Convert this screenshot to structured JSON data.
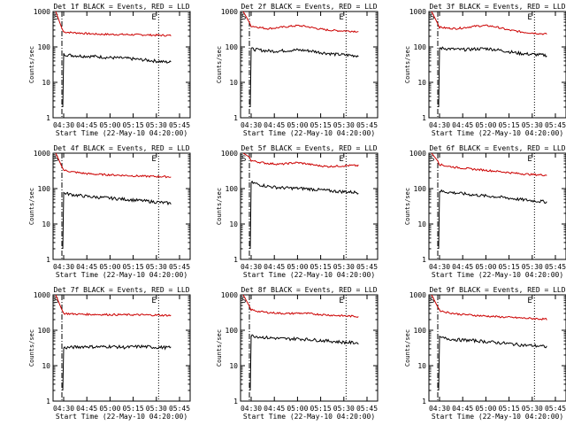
{
  "chart_data": [
    {
      "type": "line",
      "title": "Det 1f BLACK = Events, RED = LLD",
      "xlabel": "Start Time (22-May-10 04:20:00)",
      "ylabel": "Counts/sec",
      "x_tick_labels": [
        "04:30",
        "04:45",
        "05:00",
        "05:15",
        "05:30",
        "05:45"
      ],
      "y_tick_labels": [
        "1",
        "10",
        "100",
        "1000"
      ],
      "y_scale": "log",
      "ylim": [
        1,
        1000
      ],
      "markers": {
        "start_label": "S",
        "end_label": "E"
      },
      "series": [
        {
          "name": "LLD",
          "color": "#cc0000",
          "values": [
            265,
            255,
            248,
            238,
            232,
            228,
            226,
            225,
            224,
            222,
            220,
            218,
            215,
            212,
            210
          ]
        },
        {
          "name": "Events",
          "color": "#000000",
          "values": [
            62,
            58,
            56,
            55,
            54,
            52,
            50,
            49,
            48,
            46,
            44,
            42,
            40,
            38,
            37
          ]
        }
      ]
    },
    {
      "type": "line",
      "title": "Det 2f BLACK = Events, RED = LLD",
      "xlabel": "Start Time (22-May-10 04:20:00)",
      "ylabel": "Counts/sec",
      "x_tick_labels": [
        "04:30",
        "04:45",
        "05:00",
        "05:15",
        "05:30",
        "05:45"
      ],
      "y_tick_labels": [
        "1",
        "10",
        "100",
        "1000"
      ],
      "y_scale": "log",
      "ylim": [
        1,
        1000
      ],
      "markers": {
        "start_label": "S",
        "end_label": "E"
      },
      "series": [
        {
          "name": "LLD",
          "color": "#cc0000",
          "values": [
            390,
            360,
            330,
            340,
            360,
            380,
            400,
            385,
            350,
            320,
            300,
            290,
            285,
            280,
            275
          ]
        },
        {
          "name": "Events",
          "color": "#000000",
          "values": [
            88,
            82,
            78,
            76,
            78,
            80,
            82,
            80,
            76,
            70,
            66,
            62,
            60,
            58,
            56
          ]
        }
      ]
    },
    {
      "type": "line",
      "title": "Det 3f BLACK = Events, RED = LLD",
      "xlabel": "Start Time (22-May-10 04:20:00)",
      "ylabel": "Counts/sec",
      "x_tick_labels": [
        "04:30",
        "04:45",
        "05:00",
        "05:15",
        "05:30",
        "05:45"
      ],
      "y_tick_labels": [
        "1",
        "10",
        "100",
        "1000"
      ],
      "y_scale": "log",
      "ylim": [
        1,
        1000
      ],
      "markers": {
        "start_label": "S",
        "end_label": "E"
      },
      "series": [
        {
          "name": "LLD",
          "color": "#cc0000",
          "values": [
            360,
            340,
            330,
            345,
            370,
            390,
            400,
            380,
            340,
            300,
            280,
            260,
            250,
            240,
            230
          ]
        },
        {
          "name": "Events",
          "color": "#000000",
          "values": [
            92,
            90,
            86,
            84,
            86,
            88,
            90,
            86,
            80,
            74,
            68,
            64,
            62,
            60,
            58
          ]
        }
      ]
    },
    {
      "type": "line",
      "title": "Det 4f BLACK = Events, RED = LLD",
      "xlabel": "Start Time (22-May-10 04:20:00)",
      "ylabel": "Counts/sec",
      "x_tick_labels": [
        "04:30",
        "04:45",
        "05:00",
        "05:15",
        "05:30",
        "05:45"
      ],
      "y_tick_labels": [
        "1",
        "10",
        "100",
        "1000"
      ],
      "y_scale": "log",
      "ylim": [
        1,
        1000
      ],
      "markers": {
        "start_label": "S",
        "end_label": "E"
      },
      "series": [
        {
          "name": "LLD",
          "color": "#cc0000",
          "values": [
            330,
            300,
            280,
            265,
            255,
            250,
            245,
            240,
            235,
            230,
            225,
            222,
            220,
            218,
            215
          ]
        },
        {
          "name": "Events",
          "color": "#000000",
          "values": [
            75,
            68,
            64,
            60,
            58,
            56,
            54,
            52,
            50,
            48,
            46,
            44,
            42,
            40,
            38
          ]
        }
      ]
    },
    {
      "type": "line",
      "title": "Det 5f BLACK = Events, RED = LLD",
      "xlabel": "Start Time (22-May-10 04:20:00)",
      "ylabel": "Counts/sec",
      "x_tick_labels": [
        "04:30",
        "04:45",
        "05:00",
        "05:15",
        "05:30",
        "05:45"
      ],
      "y_tick_labels": [
        "1",
        "10",
        "100",
        "1000"
      ],
      "y_scale": "log",
      "ylim": [
        1,
        1000
      ],
      "markers": {
        "start_label": "S",
        "end_label": "E"
      },
      "series": [
        {
          "name": "LLD",
          "color": "#cc0000",
          "values": [
            620,
            560,
            520,
            500,
            490,
            520,
            540,
            510,
            470,
            440,
            420,
            430,
            440,
            450,
            445
          ]
        },
        {
          "name": "Events",
          "color": "#000000",
          "values": [
            150,
            130,
            118,
            110,
            105,
            104,
            102,
            100,
            96,
            92,
            88,
            84,
            82,
            80,
            78
          ]
        }
      ]
    },
    {
      "type": "line",
      "title": "Det 6f BLACK = Events, RED = LLD",
      "xlabel": "Start Time (22-May-10 04:20:00)",
      "ylabel": "Counts/sec",
      "x_tick_labels": [
        "04:30",
        "04:45",
        "05:00",
        "05:15",
        "05:30",
        "05:45"
      ],
      "y_tick_labels": [
        "1",
        "10",
        "100",
        "1000"
      ],
      "y_scale": "log",
      "ylim": [
        1,
        1000
      ],
      "markers": {
        "start_label": "S",
        "end_label": "E"
      },
      "series": [
        {
          "name": "LLD",
          "color": "#cc0000",
          "values": [
            480,
            430,
            400,
            380,
            360,
            345,
            330,
            315,
            300,
            285,
            270,
            260,
            250,
            245,
            240
          ]
        },
        {
          "name": "Events",
          "color": "#000000",
          "values": [
            85,
            80,
            76,
            72,
            68,
            65,
            62,
            60,
            57,
            54,
            51,
            48,
            46,
            44,
            42
          ]
        }
      ]
    },
    {
      "type": "line",
      "title": "Det 7f BLACK = Events, RED = LLD",
      "xlabel": "Start Time (22-May-10 04:20:00)",
      "ylabel": "Counts/sec",
      "x_tick_labels": [
        "04:30",
        "04:45",
        "05:00",
        "05:15",
        "05:30",
        "05:45"
      ],
      "y_tick_labels": [
        "1",
        "10",
        "100",
        "1000"
      ],
      "y_scale": "log",
      "ylim": [
        1,
        1000
      ],
      "markers": {
        "start_label": "S",
        "end_label": "E"
      },
      "series": [
        {
          "name": "LLD",
          "color": "#cc0000",
          "values": [
            300,
            290,
            285,
            282,
            280,
            278,
            276,
            275,
            274,
            273,
            272,
            270,
            268,
            265,
            262
          ]
        },
        {
          "name": "Events",
          "color": "#000000",
          "values": [
            32,
            33,
            34,
            35,
            34,
            34,
            35,
            34,
            33,
            34,
            35,
            34,
            33,
            33,
            32
          ]
        }
      ]
    },
    {
      "type": "line",
      "title": "Det 8f BLACK = Events, RED = LLD",
      "xlabel": "Start Time (22-May-10 04:20:00)",
      "ylabel": "Counts/sec",
      "x_tick_labels": [
        "04:30",
        "04:45",
        "05:00",
        "05:15",
        "05:30",
        "05:45"
      ],
      "y_tick_labels": [
        "1",
        "10",
        "100",
        "1000"
      ],
      "y_scale": "log",
      "ylim": [
        1,
        1000
      ],
      "markers": {
        "start_label": "S",
        "end_label": "E"
      },
      "series": [
        {
          "name": "LLD",
          "color": "#cc0000",
          "values": [
            380,
            340,
            320,
            310,
            300,
            295,
            305,
            300,
            290,
            280,
            270,
            262,
            256,
            250,
            245
          ]
        },
        {
          "name": "Events",
          "color": "#000000",
          "values": [
            70,
            66,
            62,
            60,
            58,
            57,
            58,
            56,
            54,
            52,
            50,
            48,
            46,
            45,
            44
          ]
        }
      ]
    },
    {
      "type": "line",
      "title": "Det 9f BLACK = Events, RED = LLD",
      "xlabel": "Start Time (22-May-10 04:20:00)",
      "ylabel": "Counts/sec",
      "x_tick_labels": [
        "04:30",
        "04:45",
        "05:00",
        "05:15",
        "05:30",
        "05:45"
      ],
      "y_tick_labels": [
        "1",
        "10",
        "100",
        "1000"
      ],
      "y_scale": "log",
      "ylim": [
        1,
        1000
      ],
      "markers": {
        "start_label": "S",
        "end_label": "E"
      },
      "series": [
        {
          "name": "LLD",
          "color": "#cc0000",
          "values": [
            360,
            320,
            295,
            280,
            270,
            260,
            252,
            245,
            238,
            232,
            226,
            220,
            215,
            210,
            205
          ]
        },
        {
          "name": "Events",
          "color": "#000000",
          "values": [
            62,
            58,
            55,
            53,
            52,
            50,
            48,
            46,
            44,
            42,
            40,
            38,
            37,
            36,
            34
          ]
        }
      ]
    }
  ]
}
